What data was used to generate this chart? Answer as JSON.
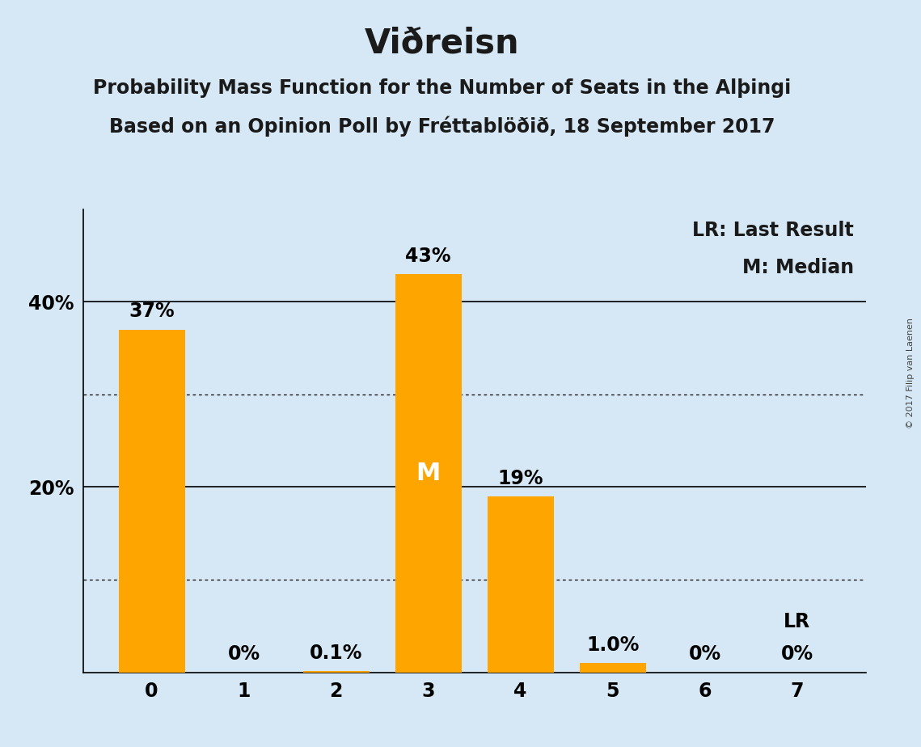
{
  "title": "Viðreisn",
  "subtitle1": "Probability Mass Function for the Number of Seats in the Alþingi",
  "subtitle2": "Based on an Opinion Poll by Fréttablöðið, 18 September 2017",
  "copyright": "© 2017 Filip van Laenen",
  "categories": [
    0,
    1,
    2,
    3,
    4,
    5,
    6,
    7
  ],
  "values": [
    37,
    0,
    0.1,
    43,
    19,
    1.0,
    0,
    0
  ],
  "labels": [
    "37%",
    "0%",
    "0.1%",
    "43%",
    "19%",
    "1.0%",
    "0%",
    "0%"
  ],
  "bar_color": "#FFA500",
  "background_color": "#D6E8F5",
  "median_bar": 3,
  "median_label": "M",
  "lr_bar": 7,
  "lr_label": "LR",
  "ylim": [
    0,
    50
  ],
  "solid_gridlines": [
    20,
    40
  ],
  "dotted_gridlines": [
    10,
    30
  ],
  "legend_lr": "LR: Last Result",
  "legend_m": "M: Median",
  "title_fontsize": 30,
  "subtitle_fontsize": 17,
  "label_fontsize": 17,
  "tick_fontsize": 17,
  "legend_fontsize": 17,
  "median_label_color": "#FFFFFF",
  "bar_width": 0.72
}
